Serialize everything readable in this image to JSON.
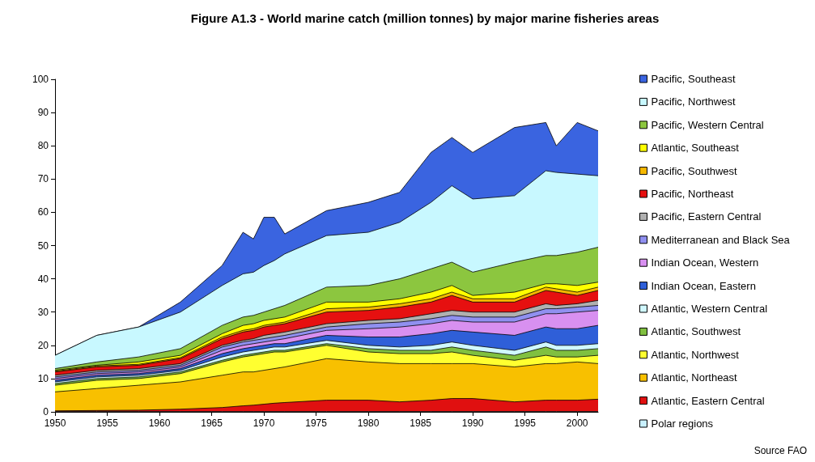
{
  "chart_data": {
    "type": "area",
    "title": "Figure A1.3 - World marine catch (million tonnes) by major marine fisheries areas",
    "stacked": true,
    "legend": "right",
    "grid": false,
    "marker": "none",
    "x": [
      1950,
      1954,
      1958,
      1962,
      1966,
      1968,
      1969,
      1970,
      1971,
      1972,
      1976,
      1980,
      1983,
      1986,
      1988,
      1990,
      1994,
      1997,
      1998,
      2000,
      2002
    ],
    "xlim": [
      1950,
      2002
    ],
    "xticks": [
      1950,
      1955,
      1960,
      1965,
      1970,
      1975,
      1980,
      1985,
      1990,
      1995,
      2000
    ],
    "ylim": [
      0,
      100
    ],
    "yticks": [
      0,
      10,
      20,
      30,
      40,
      50,
      60,
      70,
      80,
      90,
      100
    ],
    "annotations": [
      "Source FAO"
    ],
    "series": [
      {
        "name": "Polar regions",
        "color": "#c8f0ff",
        "values": [
          0.1,
          0.1,
          0.1,
          0.1,
          0.1,
          0.1,
          0.1,
          0.1,
          0.1,
          0.1,
          0.1,
          0.1,
          0.1,
          0.1,
          0.1,
          0.1,
          0.1,
          0.1,
          0.1,
          0.1,
          0.1
        ]
      },
      {
        "name": "Atlantic, Eastern Central",
        "color": "#e01010",
        "values": [
          0.2,
          0.3,
          0.4,
          0.7,
          1.2,
          1.7,
          1.9,
          2.2,
          2.5,
          2.7,
          3.4,
          3.4,
          2.9,
          3.4,
          3.9,
          3.9,
          2.9,
          3.4,
          3.4,
          3.4,
          3.7
        ]
      },
      {
        "name": "Atlantic, Northeast",
        "color": "#f8c000",
        "values": [
          5.7,
          6.6,
          7.5,
          8.2,
          9.7,
          10.2,
          10,
          10.2,
          10.4,
          10.7,
          12.5,
          11.5,
          11.5,
          11,
          10.5,
          10.5,
          10.5,
          11,
          11,
          11.5,
          10.7
        ]
      },
      {
        "name": "Atlantic, Northwest",
        "color": "#ffff30",
        "values": [
          2,
          2.5,
          2,
          2.5,
          4,
          4.5,
          5,
          5,
          5,
          4.5,
          4,
          3,
          3,
          3,
          3.5,
          2.5,
          2,
          2.5,
          2,
          1.5,
          2.5
        ]
      },
      {
        "name": "Atlantic, Southwest",
        "color": "#80c040",
        "values": [
          0.5,
          0.5,
          0.5,
          0.5,
          0.5,
          0.5,
          0.5,
          0.5,
          0.5,
          0.5,
          0.5,
          1,
          1,
          1,
          1.5,
          1.5,
          1.5,
          2.5,
          2,
          2,
          2
        ]
      },
      {
        "name": "Atlantic, Western Central",
        "color": "#d0f8ff",
        "values": [
          0.5,
          0.5,
          0.5,
          0.5,
          1,
          1,
          1,
          1,
          1,
          1,
          1,
          1,
          1,
          1.5,
          1.5,
          1.5,
          1.5,
          1.5,
          1.5,
          1.5,
          1.5
        ]
      },
      {
        "name": "Indian Ocean, Eastern",
        "color": "#2f5fd8",
        "values": [
          0.5,
          0.5,
          0.5,
          0.5,
          1,
          1,
          1,
          1,
          1,
          1,
          1.5,
          2.5,
          3,
          3.5,
          3.5,
          4,
          4.5,
          4.5,
          5,
          5,
          5.5
        ]
      },
      {
        "name": "Indian Ocean, Western",
        "color": "#d890f0",
        "values": [
          0.5,
          0.5,
          0.5,
          0.5,
          1,
          1,
          1,
          1,
          1,
          1.5,
          1.5,
          2.5,
          3,
          3,
          3,
          3,
          4,
          4,
          4.5,
          5,
          4.5
        ]
      },
      {
        "name": "Mediterranean and Black Sea",
        "color": "#9090f0",
        "values": [
          0.5,
          0.5,
          0.5,
          0.5,
          1,
          1,
          1,
          1,
          1,
          1,
          1,
          1.5,
          1.5,
          1.5,
          1.5,
          1.5,
          1.5,
          1.5,
          1.5,
          1.5,
          1.5
        ]
      },
      {
        "name": "Pacific, Eastern Central",
        "color": "#b0b0b0",
        "values": [
          0.5,
          0.5,
          0.5,
          0.5,
          0.5,
          0.5,
          0.5,
          1,
          1,
          1,
          1,
          1,
          1,
          1.5,
          1.5,
          1.5,
          1.5,
          1.5,
          1,
          1,
          1.5
        ]
      },
      {
        "name": "Pacific, Northeast",
        "color": "#e61010",
        "values": [
          1,
          1,
          1,
          1.5,
          2,
          2.5,
          2.5,
          2.5,
          2.5,
          2.5,
          3.5,
          3,
          3.5,
          3.5,
          4.5,
          3,
          3,
          4,
          4,
          2.5,
          3
        ]
      },
      {
        "name": "Pacific, Southwest",
        "color": "#f5b800",
        "values": [
          0.2,
          0.3,
          0.3,
          0.3,
          0.5,
          0.5,
          0.5,
          0.5,
          0.5,
          0.5,
          1,
          1,
          1,
          1,
          1,
          1,
          1,
          1,
          1,
          1,
          1
        ]
      },
      {
        "name": "Atlantic, Southeast",
        "color": "#ffff00",
        "values": [
          0.3,
          0.2,
          0.7,
          0.7,
          1,
          1.5,
          1.5,
          1.5,
          1.5,
          1.5,
          2,
          1.5,
          1.5,
          2,
          2,
          1,
          2,
          1,
          1.5,
          2,
          1.5
        ]
      },
      {
        "name": "Pacific, Western Central",
        "color": "#8cc63f",
        "values": [
          0.5,
          1,
          1.5,
          2,
          2.5,
          2.5,
          2.5,
          2.5,
          3,
          3.5,
          4.5,
          5,
          6,
          7,
          7,
          7,
          9,
          8.5,
          8.5,
          10,
          10.5
        ]
      },
      {
        "name": "Pacific, Northwest",
        "color": "#c8f8ff",
        "values": [
          4,
          8,
          9,
          11,
          12,
          13,
          13,
          14,
          14.5,
          15.5,
          15.5,
          16,
          17,
          20,
          23,
          22,
          20,
          25.5,
          25,
          23.5,
          21.5
        ]
      },
      {
        "name": "Pacific, Southeast",
        "color": "#3a64e0",
        "values": [
          0,
          0,
          0,
          3,
          6,
          12.5,
          10,
          14.5,
          13,
          6,
          7.5,
          9,
          9,
          15,
          14.5,
          14,
          20.5,
          14.5,
          8,
          15.5,
          13.5
        ]
      }
    ]
  }
}
